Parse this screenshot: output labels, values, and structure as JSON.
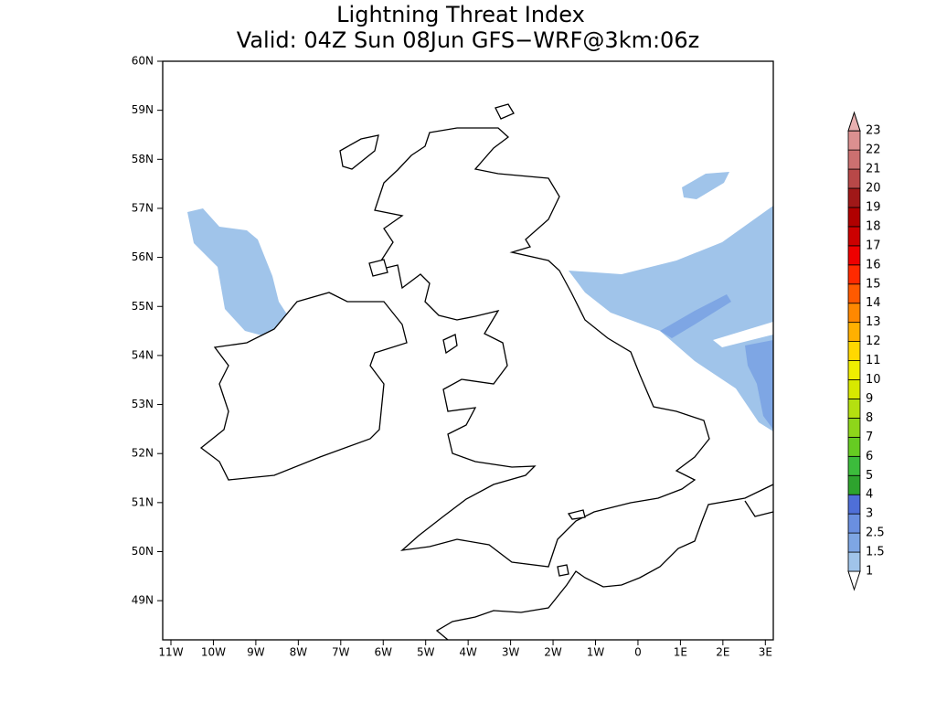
{
  "title": [
    "Lightning Threat Index",
    "Valid: 04Z Sun 08Jun GFS−WRF@3km:06z"
  ],
  "lat_labels": [
    "60N",
    "59N",
    "58N",
    "57N",
    "56N",
    "55N",
    "54N",
    "53N",
    "52N",
    "51N",
    "50N",
    "49N"
  ],
  "lon_labels": [
    "11W",
    "10W",
    "9W",
    "8W",
    "7W",
    "6W",
    "5W",
    "4W",
    "3W",
    "2W",
    "1W",
    "0",
    "1E",
    "2E",
    "3E"
  ],
  "colorbar": {
    "labels": [
      "1",
      "1.5",
      "2.5",
      "3",
      "4",
      "5",
      "6",
      "7",
      "8",
      "9",
      "10",
      "11",
      "12",
      "13",
      "14",
      "15",
      "16",
      "17",
      "18",
      "19",
      "20",
      "21",
      "22",
      "23"
    ],
    "colors": [
      "#a0c4ea",
      "#7ea6e4",
      "#6a8fe0",
      "#4f6fd8",
      "#2ea32e",
      "#3cbc3c",
      "#66cc22",
      "#8ed61a",
      "#b4e010",
      "#d8e800",
      "#f0ee00",
      "#ffd800",
      "#ffb000",
      "#ff8800",
      "#ff5a00",
      "#ff2a00",
      "#ee0000",
      "#cc0000",
      "#b00000",
      "#a01818",
      "#b84848",
      "#cc7070",
      "#dc9090",
      "#e8b0b0"
    ],
    "below_color": "#ffffff"
  }
}
